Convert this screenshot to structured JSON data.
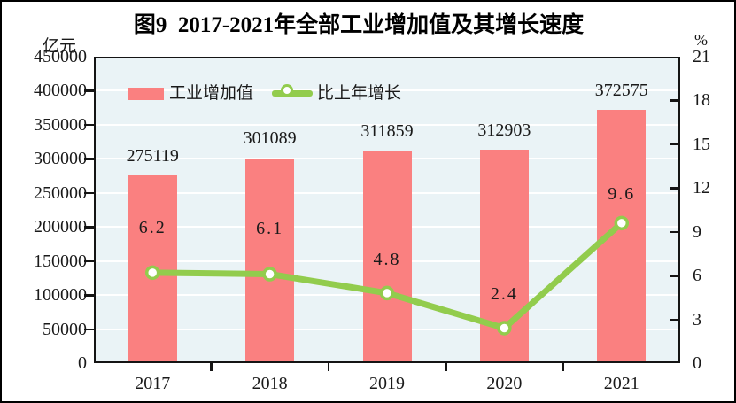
{
  "title": "图9  2017-2021年全部工业增加值及其增长速度",
  "chart_data": {
    "type": "bar+line combo",
    "categories": [
      "2017",
      "2018",
      "2019",
      "2020",
      "2021"
    ],
    "series": [
      {
        "name": "工业增加值",
        "type": "bar",
        "axis": "left",
        "values": [
          275119,
          301089,
          311859,
          312903,
          372575
        ],
        "color": "#FA8080",
        "data_labels": [
          "275119",
          "301089",
          "311859",
          "312903",
          "372575"
        ]
      },
      {
        "name": "比上年增长",
        "type": "line",
        "axis": "right",
        "values": [
          6.2,
          6.1,
          4.8,
          2.4,
          9.6
        ],
        "color": "#92CC4D",
        "marker": "circle-white-fill-green-stroke",
        "data_labels": [
          "6.2",
          "6.1",
          "4.8",
          "2.4",
          "9.6"
        ]
      }
    ],
    "left_axis": {
      "unit": "亿元",
      "min": 0,
      "max": 450000,
      "step": 50000,
      "tick_labels": [
        "450000",
        "400000",
        "350000",
        "300000",
        "250000",
        "200000",
        "150000",
        "100000",
        "50000",
        "0"
      ]
    },
    "right_axis": {
      "unit": "%",
      "min": 0,
      "max": 21,
      "step": 3,
      "tick_labels": [
        "21",
        "18",
        "15",
        "12",
        "9",
        "6",
        "3",
        "0"
      ]
    },
    "grid": true,
    "gridline_color": "#ffffff",
    "plot_bg_color": "#EAF3F6",
    "legend_position": "top-left-inside"
  }
}
